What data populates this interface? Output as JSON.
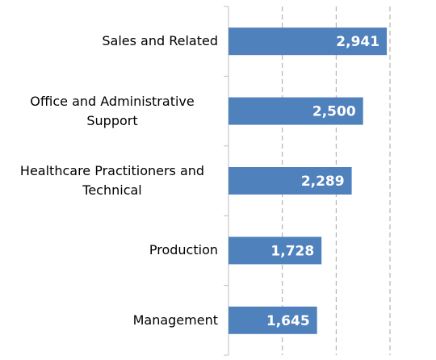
{
  "chart_data": {
    "type": "bar",
    "orientation": "horizontal",
    "categories": [
      "Sales and Related",
      "Office and Administrative Support",
      "Healthcare Practitioners and Technical",
      "Production",
      "Management"
    ],
    "values": [
      2941,
      2500,
      2289,
      1728,
      1645
    ],
    "value_labels": [
      "2,941",
      "2,500",
      "2,289",
      "1,728",
      "1,645"
    ],
    "color": "#4f81bd",
    "xlim": [
      0,
      3000
    ],
    "xticks": [
      0,
      1000,
      2000,
      3000
    ],
    "grid": true
  }
}
